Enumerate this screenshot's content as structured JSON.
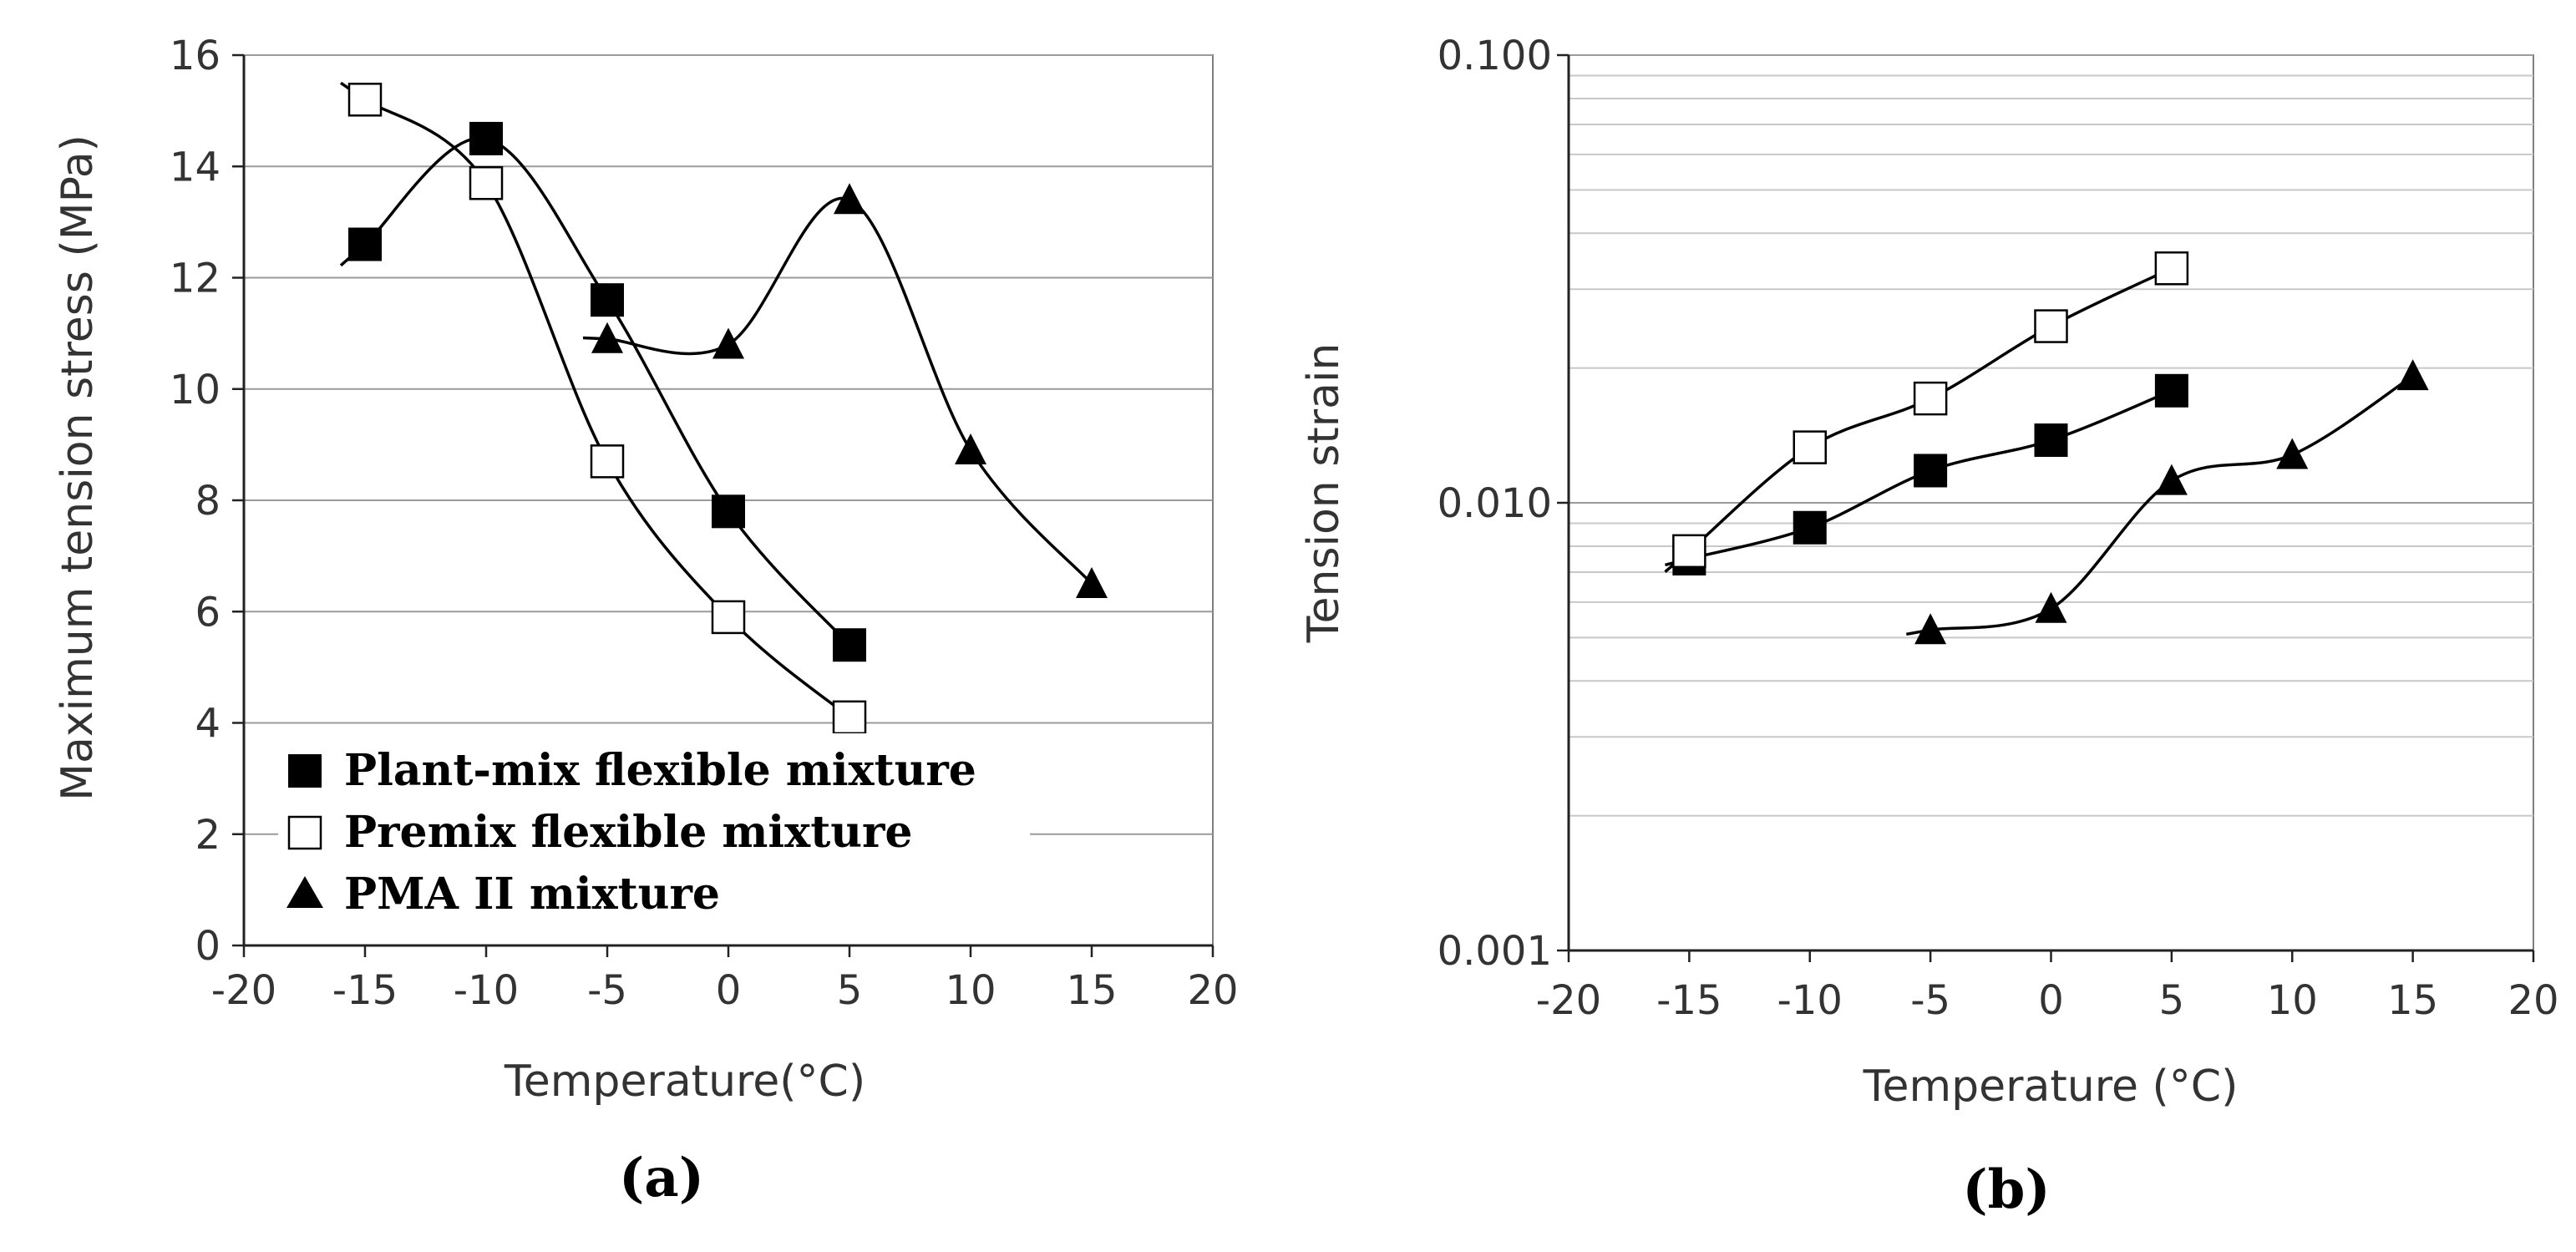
{
  "chart_data": [
    {
      "type": "line",
      "panel_caption": "(a)",
      "xlabel": "Temperature(°C)",
      "ylabel": "Maximum tension stress (MPa)",
      "xlim": [
        -20,
        20
      ],
      "ylim": [
        0,
        16
      ],
      "x_ticks": [
        "-20",
        "-15",
        "-10",
        "-5",
        "0",
        "5",
        "10",
        "15",
        "20"
      ],
      "y_ticks": [
        "0",
        "2",
        "4",
        "6",
        "8",
        "10",
        "12",
        "14",
        "16"
      ],
      "grid": "horizontal",
      "legend_position": "bottom-left",
      "series": [
        {
          "name": "Plant-mix flexible mixture",
          "marker": "filled-square",
          "x": [
            -15,
            -10,
            -5,
            0,
            5
          ],
          "y": [
            12.6,
            14.5,
            11.6,
            7.8,
            5.4
          ]
        },
        {
          "name": "Premix flexible mixture",
          "marker": "open-square",
          "x": [
            -15,
            -10,
            -5,
            0,
            5
          ],
          "y": [
            15.2,
            13.7,
            8.7,
            5.9,
            4.1
          ]
        },
        {
          "name": "PMA II mixture",
          "marker": "filled-triangle",
          "x": [
            -5,
            0,
            5,
            10,
            15
          ],
          "y": [
            10.9,
            10.8,
            13.4,
            8.9,
            6.5
          ]
        }
      ]
    },
    {
      "type": "line",
      "panel_caption": "(b)",
      "xlabel": "Temperature  (°C)",
      "ylabel": "Tension strain",
      "yscale": "log",
      "xlim": [
        -20,
        20
      ],
      "ylim": [
        0.001,
        0.1
      ],
      "x_ticks": [
        "-20",
        "-15",
        "-10",
        "-5",
        "0",
        "5",
        "10",
        "15",
        "20"
      ],
      "y_ticks": [
        "0.001",
        "0.010",
        "0.100"
      ],
      "grid": "horizontal-minor",
      "series": [
        {
          "name": "Plant-mix flexible mixture",
          "marker": "filled-square",
          "x": [
            -15,
            -10,
            -5,
            0,
            5
          ],
          "y": [
            0.0075,
            0.0088,
            0.0118,
            0.0138,
            0.0178
          ]
        },
        {
          "name": "Premix flexible mixture",
          "marker": "open-square",
          "x": [
            -15,
            -10,
            -5,
            0,
            5
          ],
          "y": [
            0.0078,
            0.0133,
            0.0171,
            0.0248,
            0.0334
          ]
        },
        {
          "name": "PMA II mixture",
          "marker": "filled-triangle",
          "x": [
            -5,
            0,
            5,
            10,
            15
          ],
          "y": [
            0.0052,
            0.0058,
            0.0112,
            0.0128,
            0.0192
          ]
        }
      ]
    }
  ]
}
